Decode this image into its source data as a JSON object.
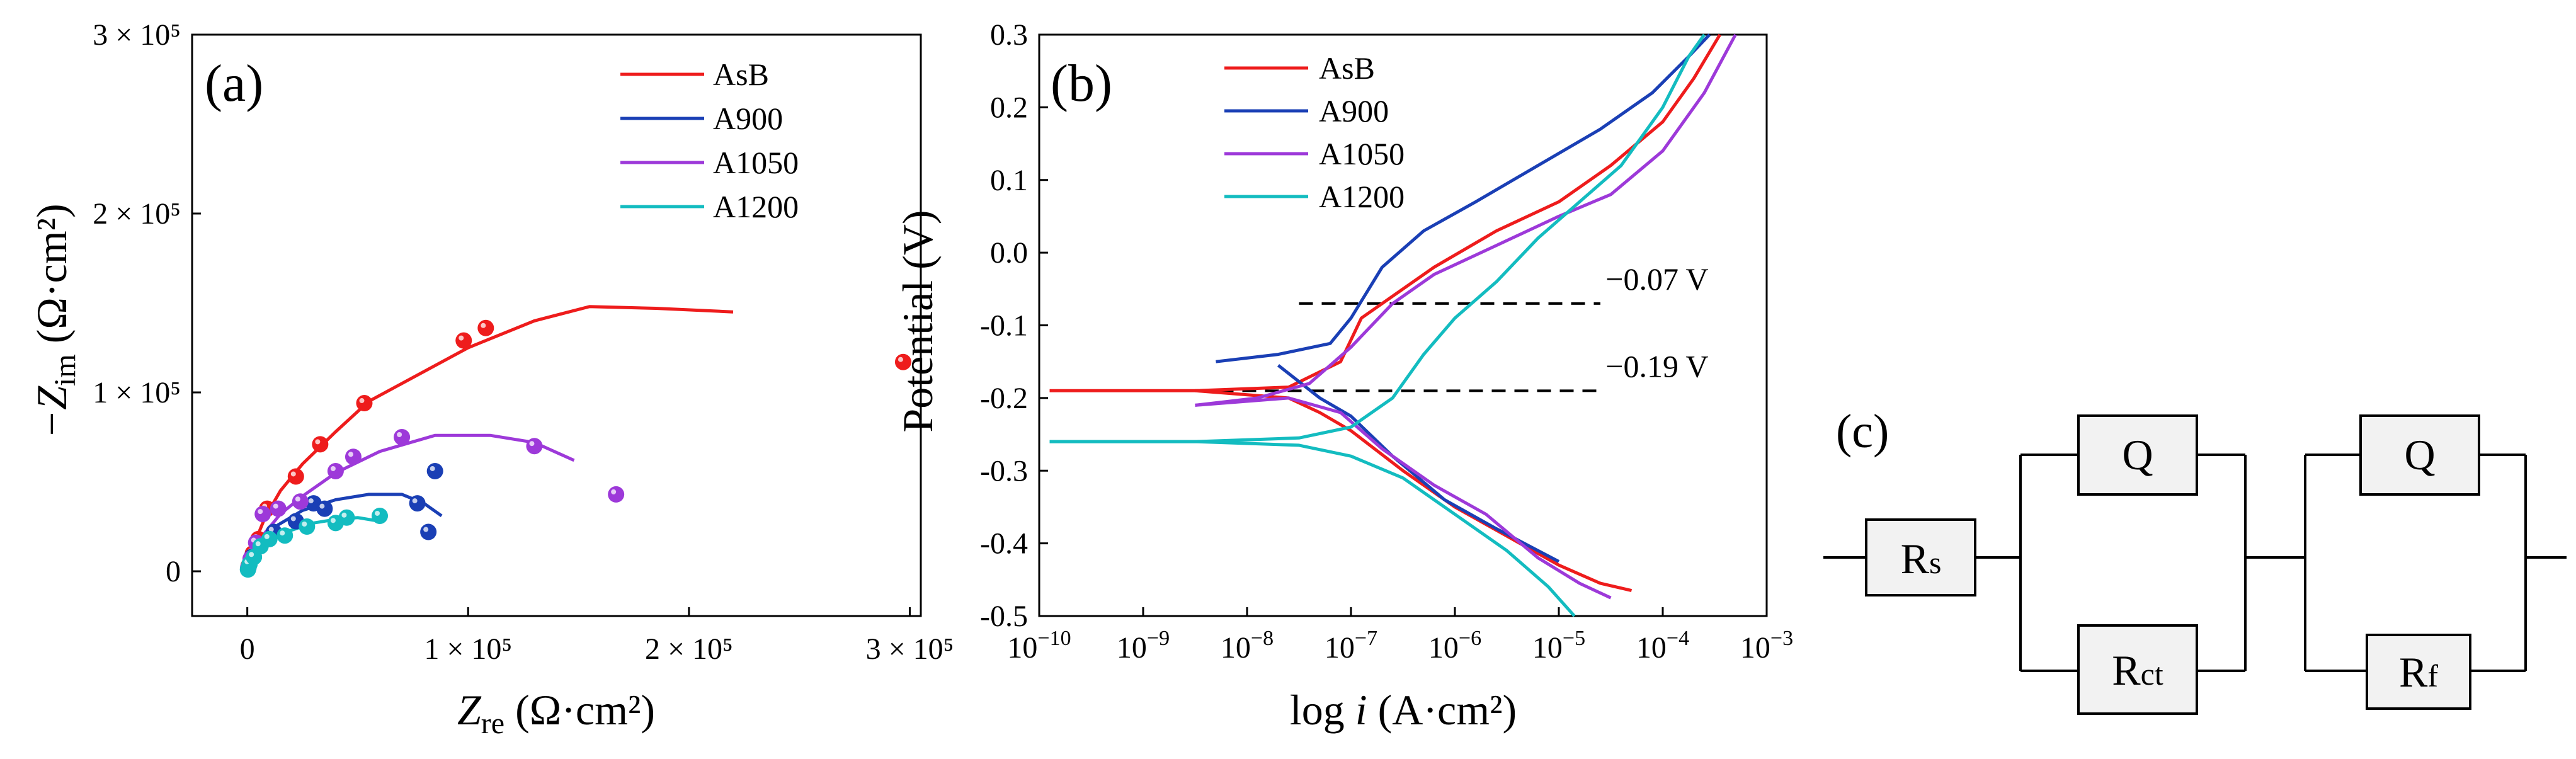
{
  "chart_data": [
    {
      "type": "scatter",
      "panel_label": "(a)",
      "title": "",
      "xlabel_main": "Z",
      "xlabel_sub": "re",
      "xlabel_unit": " (Ω·cm²)",
      "ylabel_main": "−Z",
      "ylabel_sub": "im",
      "ylabel_unit": " (Ω·cm²)",
      "xlim": [
        -25000,
        305000
      ],
      "ylim": [
        -25000,
        300000
      ],
      "x_ticks": [
        {
          "value": 0,
          "label": "0"
        },
        {
          "value": 100000,
          "label": "1 × 10⁵"
        },
        {
          "value": 200000,
          "label": "2 × 10⁵"
        },
        {
          "value": 300000,
          "label": "3 × 10⁵"
        }
      ],
      "y_ticks": [
        {
          "value": 0,
          "label": "0"
        },
        {
          "value": 100000,
          "label": "1 × 10⁵"
        },
        {
          "value": 200000,
          "label": "2 × 10⁵"
        },
        {
          "value": 300000,
          "label": "3 × 10⁵"
        }
      ],
      "legend_position": "top-right",
      "series": [
        {
          "name": "AsB",
          "color": "#ee1c1c",
          "points": [
            [
              600,
              3000
            ],
            [
              2500,
              10000
            ],
            [
              5000,
              18000
            ],
            [
              9000,
              35000
            ],
            [
              22000,
              53000
            ],
            [
              33000,
              71000
            ],
            [
              53000,
              94000
            ],
            [
              98000,
              129000
            ],
            [
              108000,
              136000
            ],
            [
              297000,
              117000
            ]
          ],
          "fit": [
            [
              0,
              0
            ],
            [
              1500,
              8000
            ],
            [
              4000,
              18000
            ],
            [
              8000,
              30000
            ],
            [
              15000,
              45000
            ],
            [
              25000,
              60000
            ],
            [
              40000,
              78000
            ],
            [
              55000,
              95000
            ],
            [
              70000,
              105000
            ],
            [
              100000,
              125000
            ],
            [
              130000,
              140000
            ],
            [
              155000,
              148000
            ],
            [
              185000,
              147000
            ],
            [
              220000,
              145000
            ]
          ]
        },
        {
          "name": "A900",
          "color": "#1a3fb5",
          "points": [
            [
              500,
              2000
            ],
            [
              2000,
              8000
            ],
            [
              6000,
              15000
            ],
            [
              12000,
              22000
            ],
            [
              22000,
              28000
            ],
            [
              30000,
              38000
            ],
            [
              35000,
              35000
            ],
            [
              77000,
              38000
            ],
            [
              82000,
              22000
            ],
            [
              85000,
              56000
            ]
          ],
          "fit": [
            [
              0,
              0
            ],
            [
              1000,
              5000
            ],
            [
              3000,
              10000
            ],
            [
              7000,
              17000
            ],
            [
              14000,
              26000
            ],
            [
              25000,
              34000
            ],
            [
              40000,
              40000
            ],
            [
              55000,
              43000
            ],
            [
              70000,
              43000
            ],
            [
              80000,
              38000
            ],
            [
              88000,
              31000
            ]
          ]
        },
        {
          "name": "A1050",
          "color": "#9d39d9",
          "points": [
            [
              400,
              2000
            ],
            [
              1500,
              7000
            ],
            [
              4000,
              16000
            ],
            [
              7000,
              32000
            ],
            [
              14000,
              35000
            ],
            [
              24000,
              39000
            ],
            [
              40000,
              56000
            ],
            [
              48000,
              64000
            ],
            [
              70000,
              75000
            ],
            [
              130000,
              70000
            ],
            [
              167000,
              43000
            ]
          ],
          "fit": [
            [
              0,
              0
            ],
            [
              1000,
              5000
            ],
            [
              3000,
              12000
            ],
            [
              7000,
              20000
            ],
            [
              15000,
              32000
            ],
            [
              25000,
              42000
            ],
            [
              40000,
              55000
            ],
            [
              60000,
              67000
            ],
            [
              85000,
              76000
            ],
            [
              110000,
              76000
            ],
            [
              130000,
              72000
            ],
            [
              148000,
              62000
            ]
          ]
        },
        {
          "name": "A1200",
          "color": "#13bcc0",
          "points": [
            [
              300,
              1000
            ],
            [
              1000,
              4000
            ],
            [
              3000,
              8000
            ],
            [
              6000,
              14000
            ],
            [
              10000,
              18000
            ],
            [
              17000,
              20000
            ],
            [
              27000,
              25000
            ],
            [
              40000,
              27000
            ],
            [
              45000,
              30000
            ],
            [
              60000,
              31000
            ]
          ],
          "fit": [
            [
              0,
              0
            ],
            [
              1000,
              4000
            ],
            [
              3000,
              8000
            ],
            [
              7000,
              13000
            ],
            [
              12000,
              18000
            ],
            [
              20000,
              23000
            ],
            [
              30000,
              27000
            ],
            [
              40000,
              29000
            ],
            [
              50000,
              30000
            ],
            [
              60000,
              28000
            ]
          ]
        }
      ]
    },
    {
      "type": "line",
      "panel_label": "(b)",
      "title": "",
      "xlabel_pre": "log ",
      "xlabel_italic": "i",
      "xlabel_unit": " (A·cm²)",
      "ylabel": "Potential (V)",
      "xlim": [
        -10,
        -3
      ],
      "ylim": [
        -0.5,
        0.3
      ],
      "x_ticks": [
        {
          "value": -10,
          "base": "10",
          "exp": "−10"
        },
        {
          "value": -9,
          "base": "10",
          "exp": "−9"
        },
        {
          "value": -8,
          "base": "10",
          "exp": "−8"
        },
        {
          "value": -7,
          "base": "10",
          "exp": "−7"
        },
        {
          "value": -6,
          "base": "10",
          "exp": "−6"
        },
        {
          "value": -5,
          "base": "10",
          "exp": "−5"
        },
        {
          "value": -4,
          "base": "10",
          "exp": "−4"
        },
        {
          "value": -3,
          "base": "10",
          "exp": "−3"
        }
      ],
      "y_ticks": [
        {
          "value": 0.3,
          "label": "0.3"
        },
        {
          "value": 0.2,
          "label": "0.2"
        },
        {
          "value": 0.1,
          "label": "0.1"
        },
        {
          "value": 0.0,
          "label": "0.0"
        },
        {
          "value": -0.1,
          "label": "-0.1"
        },
        {
          "value": -0.2,
          "label": "-0.2"
        },
        {
          "value": -0.3,
          "label": "-0.3"
        },
        {
          "value": -0.4,
          "label": "-0.4"
        },
        {
          "value": -0.5,
          "label": "-0.5"
        }
      ],
      "legend_position": "top-left",
      "annotations": [
        {
          "text": "−0.07 V",
          "value": -0.07,
          "x_from": -7.5,
          "x_to": -4.6,
          "text_x": -4.55
        },
        {
          "text": "−0.19 V",
          "value": -0.19,
          "x_from": -8.7,
          "x_to": -4.6,
          "text_x": -4.55
        }
      ],
      "series": [
        {
          "name": "AsB",
          "color": "#ee1c1c",
          "anodic": [
            [
              -9.9,
              -0.19
            ],
            [
              -8.5,
              -0.19
            ],
            [
              -7.6,
              -0.185
            ],
            [
              -7.1,
              -0.15
            ],
            [
              -6.9,
              -0.09
            ],
            [
              -6.6,
              -0.06
            ],
            [
              -6.2,
              -0.02
            ],
            [
              -5.6,
              0.03
            ],
            [
              -5.0,
              0.07
            ],
            [
              -4.5,
              0.12
            ],
            [
              -4.0,
              0.18
            ],
            [
              -3.7,
              0.24
            ],
            [
              -3.45,
              0.3
            ]
          ],
          "cathodic": [
            [
              -8.5,
              -0.19
            ],
            [
              -7.6,
              -0.2
            ],
            [
              -7.3,
              -0.22
            ],
            [
              -7.0,
              -0.245
            ],
            [
              -6.5,
              -0.3
            ],
            [
              -6.0,
              -0.35
            ],
            [
              -5.5,
              -0.39
            ],
            [
              -5.0,
              -0.43
            ],
            [
              -4.6,
              -0.455
            ],
            [
              -4.3,
              -0.465
            ]
          ]
        },
        {
          "name": "A900",
          "color": "#1a3fb5",
          "anodic": [
            [
              -8.3,
              -0.15
            ],
            [
              -7.7,
              -0.14
            ],
            [
              -7.2,
              -0.125
            ],
            [
              -7.0,
              -0.09
            ],
            [
              -6.7,
              -0.02
            ],
            [
              -6.3,
              0.03
            ],
            [
              -5.8,
              0.07
            ],
            [
              -5.2,
              0.12
            ],
            [
              -4.6,
              0.17
            ],
            [
              -4.1,
              0.22
            ],
            [
              -3.75,
              0.27
            ],
            [
              -3.55,
              0.3
            ]
          ],
          "cathodic": [
            [
              -7.7,
              -0.155
            ],
            [
              -7.3,
              -0.2
            ],
            [
              -7.0,
              -0.225
            ],
            [
              -6.6,
              -0.28
            ],
            [
              -6.1,
              -0.34
            ],
            [
              -5.6,
              -0.38
            ],
            [
              -5.2,
              -0.41
            ],
            [
              -5.0,
              -0.425
            ]
          ]
        },
        {
          "name": "A1050",
          "color": "#9d39d9",
          "anodic": [
            [
              -8.5,
              -0.21
            ],
            [
              -7.9,
              -0.2
            ],
            [
              -7.4,
              -0.18
            ],
            [
              -7.0,
              -0.13
            ],
            [
              -6.6,
              -0.07
            ],
            [
              -6.2,
              -0.03
            ],
            [
              -5.6,
              0.01
            ],
            [
              -5.0,
              0.05
            ],
            [
              -4.5,
              0.08
            ],
            [
              -4.0,
              0.14
            ],
            [
              -3.6,
              0.22
            ],
            [
              -3.3,
              0.3
            ]
          ],
          "cathodic": [
            [
              -8.5,
              -0.21
            ],
            [
              -7.6,
              -0.2
            ],
            [
              -7.1,
              -0.22
            ],
            [
              -6.7,
              -0.27
            ],
            [
              -6.2,
              -0.32
            ],
            [
              -5.7,
              -0.36
            ],
            [
              -5.2,
              -0.42
            ],
            [
              -4.8,
              -0.455
            ],
            [
              -4.5,
              -0.475
            ]
          ]
        },
        {
          "name": "A1200",
          "color": "#13bcc0",
          "anodic": [
            [
              -9.9,
              -0.26
            ],
            [
              -8.5,
              -0.26
            ],
            [
              -7.5,
              -0.255
            ],
            [
              -7.0,
              -0.24
            ],
            [
              -6.6,
              -0.2
            ],
            [
              -6.3,
              -0.14
            ],
            [
              -6.0,
              -0.09
            ],
            [
              -5.6,
              -0.04
            ],
            [
              -5.2,
              0.02
            ],
            [
              -4.8,
              0.07
            ],
            [
              -4.4,
              0.12
            ],
            [
              -4.0,
              0.2
            ],
            [
              -3.75,
              0.27
            ],
            [
              -3.6,
              0.3
            ]
          ],
          "cathodic": [
            [
              -9.9,
              -0.26
            ],
            [
              -8.5,
              -0.26
            ],
            [
              -7.5,
              -0.265
            ],
            [
              -7.0,
              -0.28
            ],
            [
              -6.5,
              -0.31
            ],
            [
              -6.0,
              -0.36
            ],
            [
              -5.5,
              -0.41
            ],
            [
              -5.1,
              -0.46
            ],
            [
              -4.85,
              -0.5
            ]
          ]
        }
      ]
    }
  ],
  "circuit": {
    "panel_label": "(c)",
    "rs_main": "R",
    "rs_sub": "s",
    "rct_main": "R",
    "rct_sub": "ct",
    "rf_main": "R",
    "rf_sub": "f",
    "q1_label": "Q",
    "q2_label": "Q"
  }
}
